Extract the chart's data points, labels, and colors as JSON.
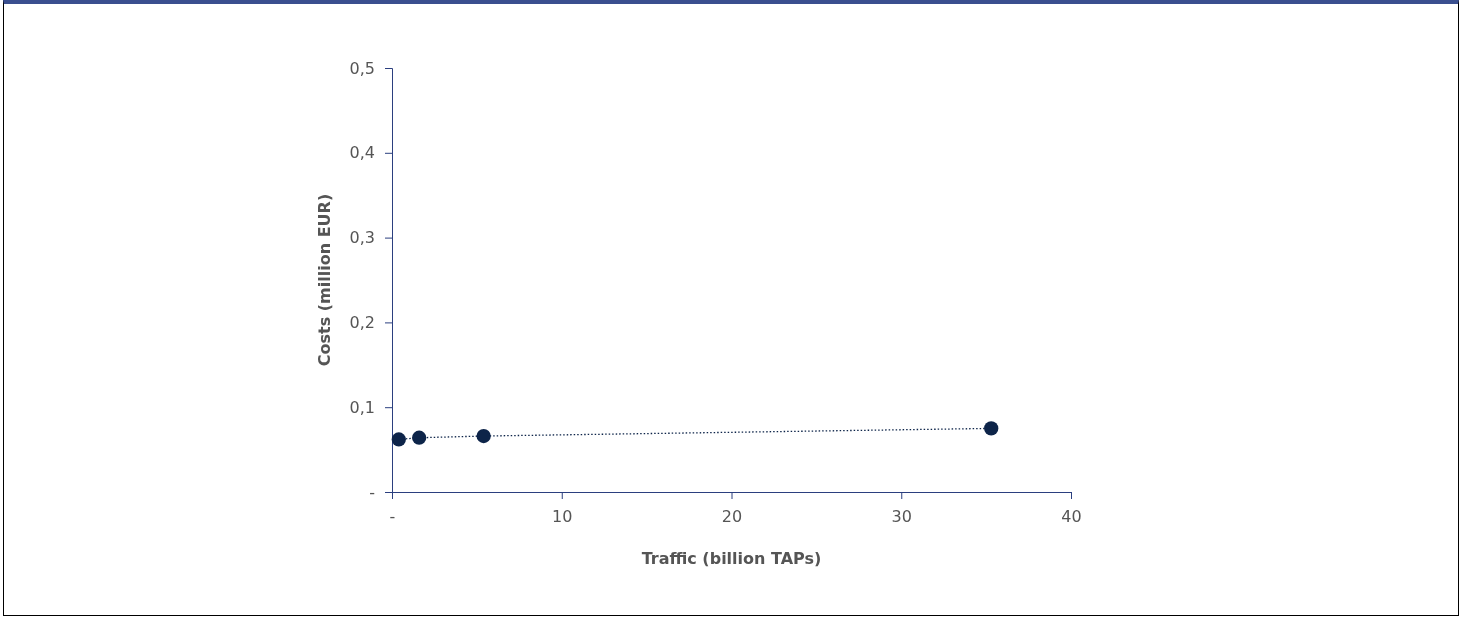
{
  "chart_data": {
    "type": "line",
    "xlabel": "Traffic (billion TAPs)",
    "ylabel": "Costs (million EUR)",
    "x": [
      0.4,
      1.6,
      5.4,
      35.3
    ],
    "series": [
      {
        "color": "#0d2449",
        "values": [
          0.062,
          0.064,
          0.066,
          0.075
        ]
      }
    ],
    "xlim": [
      0,
      40
    ],
    "xticks": [
      {
        "value": 0,
        "label": "-"
      },
      10,
      20,
      30,
      40
    ],
    "ylim": [
      0,
      0.5
    ],
    "yticks": [
      {
        "value": 0,
        "label": "-"
      },
      {
        "value": 0.1,
        "label": "0,1"
      },
      {
        "value": 0.2,
        "label": "0,2"
      },
      {
        "value": 0.3,
        "label": "0,3"
      },
      {
        "value": 0.4,
        "label": "0,4"
      },
      {
        "value": 0.5,
        "label": "0,5"
      }
    ],
    "grid": false,
    "marker": "circle",
    "line_style": "dotted"
  }
}
